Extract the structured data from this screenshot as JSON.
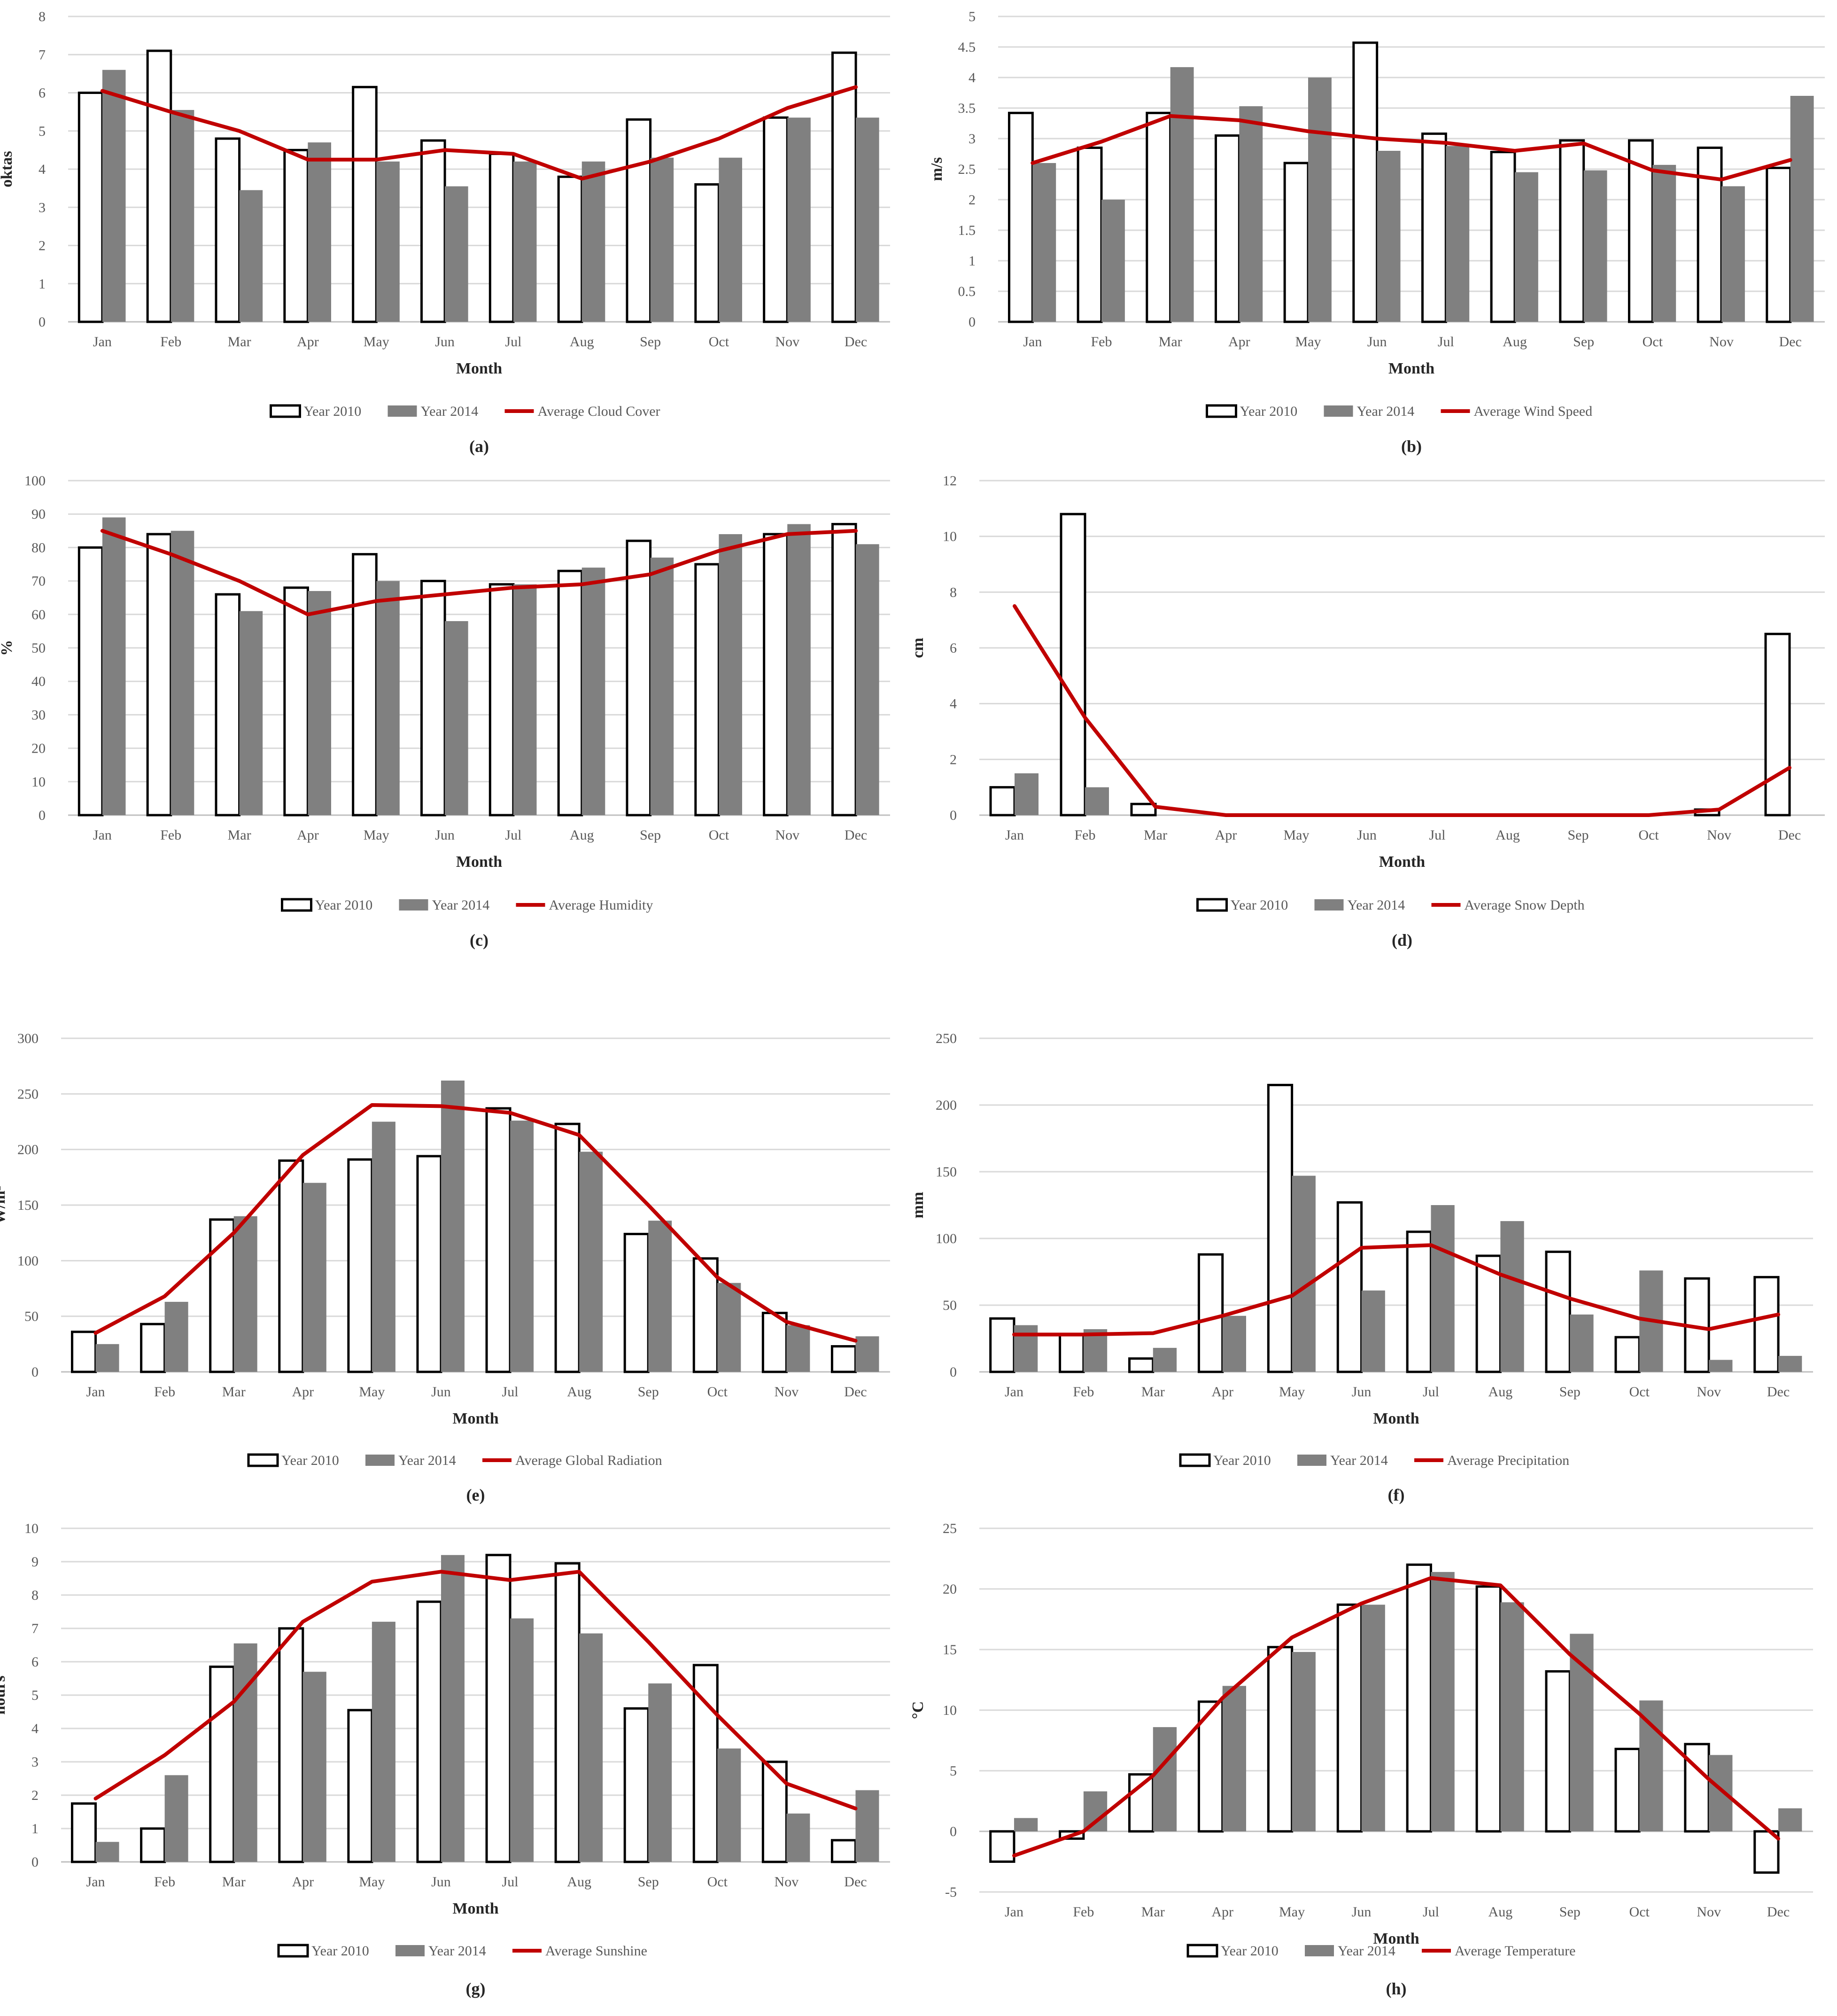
{
  "legend_common": {
    "year_a": "Year 2010",
    "year_b": "Year 2014"
  },
  "colors": {
    "bar_a_fill": "#ffffff",
    "bar_a_stroke": "#000000",
    "bar_b": "#808080",
    "average_line": "#c00000",
    "grid": "#d9d9d9",
    "axis_text": "#595959"
  },
  "chart_data": [
    {
      "panel": "(a)",
      "type": "bar",
      "xlabel": "Month",
      "ylabel": "oktas",
      "ylim": [
        0,
        8
      ],
      "yticks": [
        "0",
        "1",
        "2",
        "3",
        "4",
        "5",
        "6",
        "7",
        "8"
      ],
      "grid": true,
      "legend_placement": "bottom",
      "categories": [
        "Jan",
        "Feb",
        "Mar",
        "Apr",
        "May",
        "Jun",
        "Jul",
        "Aug",
        "Sep",
        "Oct",
        "Nov",
        "Dec"
      ],
      "series": [
        {
          "name": "Year 2010",
          "type": "bar",
          "values": [
            6.0,
            7.1,
            4.8,
            4.5,
            6.15,
            4.75,
            4.4,
            3.8,
            5.3,
            3.6,
            5.35,
            7.05
          ]
        },
        {
          "name": "Year 2014",
          "type": "bar",
          "values": [
            6.6,
            5.55,
            3.45,
            4.7,
            4.2,
            3.55,
            4.2,
            4.2,
            4.3,
            4.3,
            5.35,
            5.35
          ]
        },
        {
          "name": "Average Cloud Cover",
          "type": "line",
          "values": [
            6.05,
            5.5,
            5.0,
            4.25,
            4.25,
            4.5,
            4.4,
            3.75,
            4.2,
            4.8,
            5.6,
            6.15
          ]
        }
      ]
    },
    {
      "panel": "(b)",
      "type": "bar",
      "xlabel": "Month",
      "ylabel": "m/s",
      "ylim": [
        0,
        5
      ],
      "yticks": [
        "0",
        "0.5",
        "1",
        "1.5",
        "2",
        "2.5",
        "3",
        "3.5",
        "4",
        "4.5",
        "5"
      ],
      "grid": true,
      "legend_placement": "bottom",
      "categories": [
        "Jan",
        "Feb",
        "Mar",
        "Apr",
        "May",
        "Jun",
        "Jul",
        "Aug",
        "Sep",
        "Oct",
        "Nov",
        "Dec"
      ],
      "series": [
        {
          "name": "Year 2010",
          "type": "bar",
          "values": [
            3.42,
            2.85,
            3.42,
            3.05,
            2.6,
            4.57,
            3.08,
            2.78,
            2.97,
            2.97,
            2.85,
            2.52
          ]
        },
        {
          "name": "Year 2014",
          "type": "bar",
          "values": [
            2.6,
            2.0,
            4.17,
            3.53,
            4.0,
            2.8,
            2.88,
            2.45,
            2.48,
            2.57,
            2.22,
            3.7
          ]
        },
        {
          "name": "Average Wind Speed",
          "type": "line",
          "values": [
            2.6,
            2.95,
            3.37,
            3.3,
            3.12,
            3.0,
            2.93,
            2.8,
            2.92,
            2.48,
            2.33,
            2.65
          ]
        }
      ]
    },
    {
      "panel": "(c)",
      "type": "bar",
      "xlabel": "Month",
      "ylabel": "%",
      "ylim": [
        0,
        100
      ],
      "yticks": [
        "0",
        "10",
        "20",
        "30",
        "40",
        "50",
        "60",
        "70",
        "80",
        "90",
        "100"
      ],
      "grid": true,
      "legend_placement": "bottom",
      "categories": [
        "Jan",
        "Feb",
        "Mar",
        "Apr",
        "May",
        "Jun",
        "Jul",
        "Aug",
        "Sep",
        "Oct",
        "Nov",
        "Dec"
      ],
      "series": [
        {
          "name": "Year 2010",
          "type": "bar",
          "values": [
            80,
            84,
            66,
            68,
            78,
            70,
            69,
            73,
            82,
            75,
            84,
            87
          ]
        },
        {
          "name": "Year 2014",
          "type": "bar",
          "values": [
            89,
            85,
            61,
            67,
            70,
            58,
            69,
            74,
            77,
            84,
            87,
            81
          ]
        },
        {
          "name": "Average Humidity",
          "type": "line",
          "values": [
            85,
            78,
            70,
            60,
            64,
            66,
            68,
            69,
            72,
            79,
            84,
            85
          ]
        }
      ]
    },
    {
      "panel": "(d)",
      "type": "bar",
      "xlabel": "Month",
      "ylabel": "cm",
      "ylim": [
        0,
        12
      ],
      "yticks": [
        "0",
        "2",
        "4",
        "6",
        "8",
        "10",
        "12"
      ],
      "grid": true,
      "legend_placement": "bottom",
      "categories": [
        "Jan",
        "Feb",
        "Mar",
        "Apr",
        "May",
        "Jun",
        "Jul",
        "Aug",
        "Sep",
        "Oct",
        "Nov",
        "Dec"
      ],
      "series": [
        {
          "name": "Year 2010",
          "type": "bar",
          "values": [
            1.0,
            10.8,
            0.4,
            0,
            0,
            0,
            0,
            0,
            0,
            0,
            0.2,
            6.5
          ]
        },
        {
          "name": "Year 2014",
          "type": "bar",
          "values": [
            1.5,
            1.0,
            0,
            0,
            0,
            0,
            0,
            0,
            0,
            0,
            0,
            0
          ]
        },
        {
          "name": "Average Snow Depth",
          "type": "line",
          "values": [
            7.5,
            3.5,
            0.3,
            0,
            0,
            0,
            0,
            0,
            0,
            0,
            0.2,
            1.7
          ]
        }
      ]
    },
    {
      "panel": "(e)",
      "type": "bar",
      "xlabel": "Month",
      "ylabel": "W/m²",
      "ylim": [
        0,
        300
      ],
      "yticks": [
        "0",
        "50",
        "100",
        "150",
        "200",
        "250",
        "300"
      ],
      "grid": true,
      "legend_placement": "bottom",
      "categories": [
        "Jan",
        "Feb",
        "Mar",
        "Apr",
        "May",
        "Jun",
        "Jul",
        "Aug",
        "Sep",
        "Oct",
        "Nov",
        "Dec"
      ],
      "series": [
        {
          "name": "Year 2010",
          "type": "bar",
          "values": [
            36,
            43,
            137,
            190,
            191,
            194,
            237,
            223,
            124,
            102,
            53,
            23
          ]
        },
        {
          "name": "Year 2014",
          "type": "bar",
          "values": [
            25,
            63,
            140,
            170,
            225,
            262,
            226,
            198,
            136,
            80,
            42,
            32
          ]
        },
        {
          "name": "Average Global Radiation",
          "type": "line",
          "values": [
            35,
            68,
            125,
            195,
            240,
            239,
            233,
            213,
            150,
            85,
            45,
            28
          ]
        }
      ]
    },
    {
      "panel": "(f)",
      "type": "bar",
      "xlabel": "Month",
      "ylabel": "mm",
      "ylim": [
        0,
        250
      ],
      "yticks": [
        "0",
        "50",
        "100",
        "150",
        "200",
        "250"
      ],
      "grid": true,
      "legend_placement": "bottom",
      "categories": [
        "Jan",
        "Feb",
        "Mar",
        "Apr",
        "May",
        "Jun",
        "Jul",
        "Aug",
        "Sep",
        "Oct",
        "Nov",
        "Dec"
      ],
      "series": [
        {
          "name": "Year 2010",
          "type": "bar",
          "values": [
            40,
            28,
            10,
            88,
            215,
            127,
            105,
            87,
            90,
            26,
            70,
            71
          ]
        },
        {
          "name": "Year 2014",
          "type": "bar",
          "values": [
            35,
            32,
            18,
            42,
            147,
            61,
            125,
            113,
            43,
            76,
            9,
            12
          ]
        },
        {
          "name": "Average Precipitation",
          "type": "line",
          "values": [
            28,
            28,
            29,
            42,
            57,
            93,
            95,
            73,
            55,
            40,
            32,
            43
          ]
        }
      ]
    },
    {
      "panel": "(g)",
      "type": "bar",
      "xlabel": "Month",
      "ylabel": "hours",
      "ylim": [
        0,
        10
      ],
      "yticks": [
        "0",
        "1",
        "2",
        "3",
        "4",
        "5",
        "6",
        "7",
        "8",
        "9",
        "10"
      ],
      "grid": true,
      "legend_placement": "bottom",
      "categories": [
        "Jan",
        "Feb",
        "Mar",
        "Apr",
        "May",
        "Jun",
        "Jul",
        "Aug",
        "Sep",
        "Oct",
        "Nov",
        "Dec"
      ],
      "series": [
        {
          "name": "Year 2010",
          "type": "bar",
          "values": [
            1.75,
            1.0,
            5.85,
            7.0,
            4.55,
            7.8,
            9.2,
            8.95,
            4.6,
            5.9,
            3.0,
            0.65
          ]
        },
        {
          "name": "Year 2014",
          "type": "bar",
          "values": [
            0.6,
            2.6,
            6.55,
            5.7,
            7.2,
            9.2,
            7.3,
            6.85,
            5.35,
            3.4,
            1.45,
            2.15
          ]
        },
        {
          "name": "Average Sunshine",
          "type": "line",
          "values": [
            1.9,
            3.2,
            4.8,
            7.2,
            8.4,
            8.7,
            8.45,
            8.7,
            6.6,
            4.4,
            2.35,
            1.6
          ]
        }
      ]
    },
    {
      "panel": "(h)",
      "type": "bar",
      "xlabel": "Month",
      "ylabel": "°C",
      "ylim": [
        -5,
        25
      ],
      "yticks": [
        "-5",
        "0",
        "5",
        "10",
        "15",
        "20",
        "25"
      ],
      "grid": true,
      "legend_placement": "bottom",
      "categories": [
        "Jan",
        "Feb",
        "Mar",
        "Apr",
        "May",
        "Jun",
        "Jul",
        "Aug",
        "Sep",
        "Oct",
        "Nov",
        "Dec"
      ],
      "series": [
        {
          "name": "Year 2010",
          "type": "bar",
          "values": [
            -2.5,
            -0.6,
            4.7,
            10.7,
            15.2,
            18.7,
            22.0,
            20.2,
            13.2,
            6.8,
            7.2,
            -3.4
          ]
        },
        {
          "name": "Year 2014",
          "type": "bar",
          "values": [
            1.1,
            3.3,
            8.6,
            12.0,
            14.8,
            18.7,
            21.4,
            18.9,
            16.3,
            10.8,
            6.3,
            1.9
          ]
        },
        {
          "name": "Average Temperature",
          "type": "line",
          "values": [
            -2.0,
            0.0,
            4.6,
            11.0,
            16.0,
            18.8,
            20.9,
            20.3,
            14.6,
            9.7,
            4.3,
            -0.6
          ]
        }
      ]
    }
  ]
}
